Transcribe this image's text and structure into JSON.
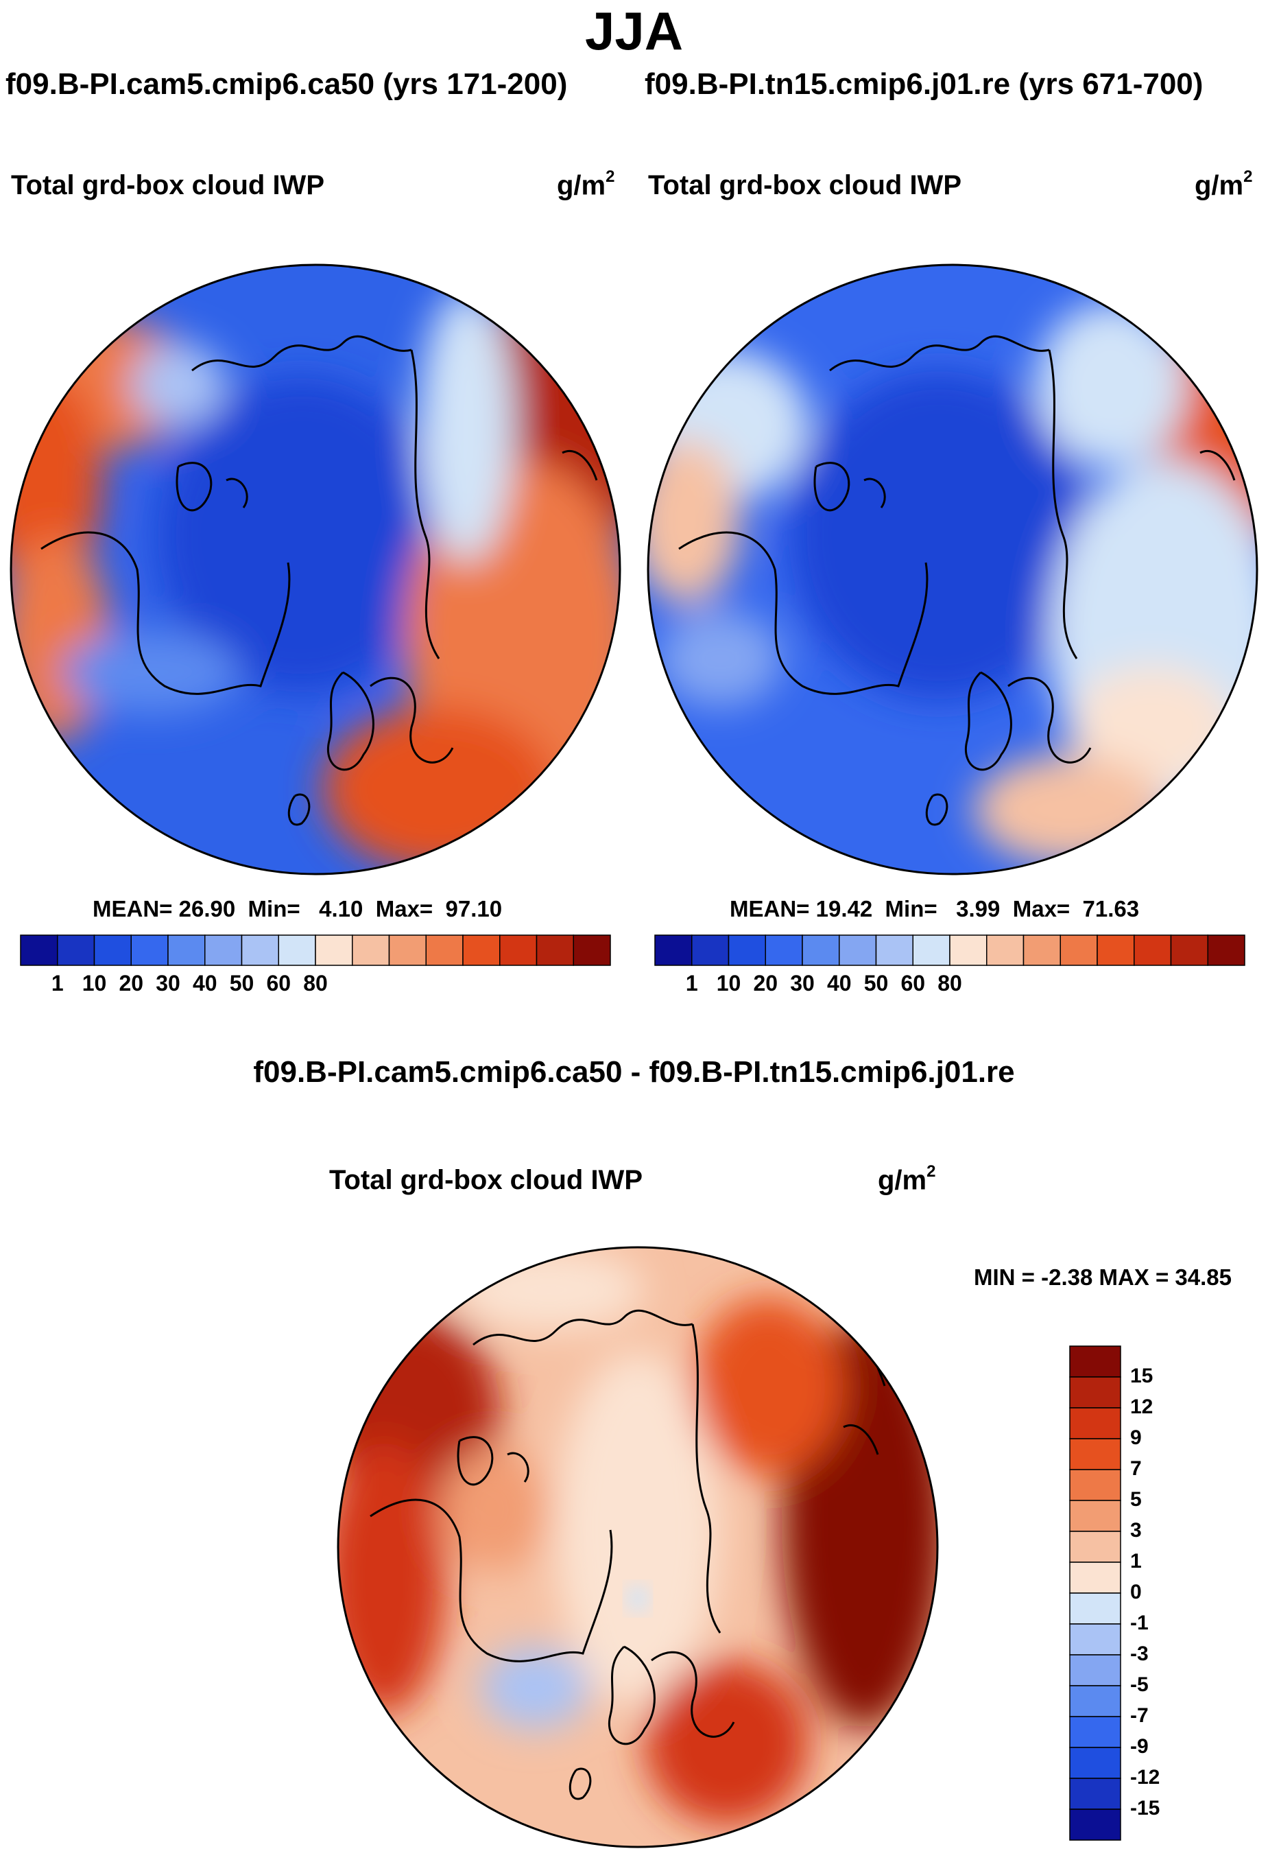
{
  "season": "JJA",
  "subtitle_left": "f09.B-PI.cam5.cmip6.ca50 (yrs 171-200)",
  "subtitle_right": "f09.B-PI.tn15.cmip6.j01.re (yrs 671-700)",
  "diff_title": "f09.B-PI.cam5.cmip6.ca50 - f09.B-PI.tn15.cmip6.j01.re",
  "chart_data": [
    {
      "type": "heatmap",
      "projection": "north-polar-stereographic",
      "title": "Total grd-box cloud IWP",
      "units_base": "g/m",
      "units_exp": "2",
      "stats": {
        "mean_label": "MEAN=",
        "mean": "26.90",
        "min_label": "Min=",
        "min": "4.10",
        "max_label": "Max=",
        "max": "97.10"
      },
      "colorbar": {
        "orientation": "horizontal",
        "ticks": [
          "1",
          "10",
          "20",
          "30",
          "40",
          "50",
          "60",
          "80"
        ],
        "colors": [
          "#0b0f94",
          "#1834c2",
          "#1f4fe0",
          "#3568ee",
          "#5b8af0",
          "#84a6f2",
          "#aac3f5",
          "#d2e4f8",
          "#fbe3d2",
          "#f6c1a3",
          "#f29d73",
          "#ee7947",
          "#e6511f",
          "#d33613",
          "#b3230d",
          "#840a05"
        ]
      }
    },
    {
      "type": "heatmap",
      "projection": "north-polar-stereographic",
      "title": "Total grd-box cloud IWP",
      "units_base": "g/m",
      "units_exp": "2",
      "stats": {
        "mean_label": "MEAN=",
        "mean": "19.42",
        "min_label": "Min=",
        "min": "3.99",
        "max_label": "Max=",
        "max": "71.63"
      },
      "colorbar": {
        "orientation": "horizontal",
        "ticks": [
          "1",
          "10",
          "20",
          "30",
          "40",
          "50",
          "60",
          "80"
        ],
        "colors": [
          "#0b0f94",
          "#1834c2",
          "#1f4fe0",
          "#3568ee",
          "#5b8af0",
          "#84a6f2",
          "#aac3f5",
          "#d2e4f8",
          "#fbe3d2",
          "#f6c1a3",
          "#f29d73",
          "#ee7947",
          "#e6511f",
          "#d33613",
          "#b3230d",
          "#840a05"
        ]
      }
    },
    {
      "type": "heatmap",
      "projection": "north-polar-stereographic",
      "title": "Total grd-box cloud IWP",
      "units_base": "g/m",
      "units_exp": "2",
      "min_max_text": "MIN =  -2.38 MAX =  34.85",
      "stats": {
        "min": -2.38,
        "max": 34.85
      },
      "colorbar": {
        "orientation": "vertical",
        "ticks": [
          "15",
          "12",
          "9",
          "7",
          "5",
          "3",
          "1",
          "0",
          "-1",
          "-3",
          "-5",
          "-7",
          "-9",
          "-12",
          "-15"
        ],
        "colors": [
          "#840a05",
          "#b3230d",
          "#d33613",
          "#e6511f",
          "#ee7947",
          "#f29d73",
          "#f6c1a3",
          "#fbe3d2",
          "#d2e4f8",
          "#aac3f5",
          "#84a6f2",
          "#5b8af0",
          "#3568ee",
          "#1f4fe0",
          "#1834c2",
          "#0b0f94"
        ]
      }
    }
  ]
}
